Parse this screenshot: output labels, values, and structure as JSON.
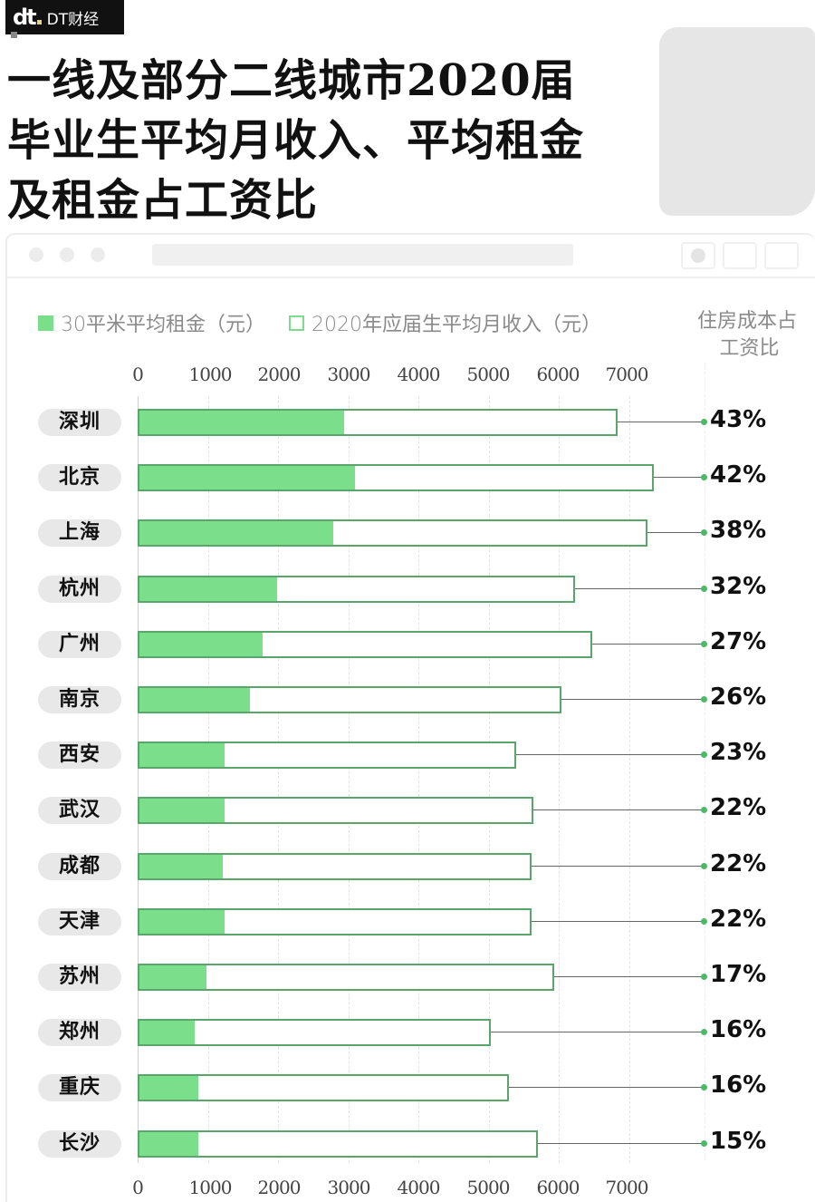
{
  "brand": {
    "logo_mark": "dt",
    "name": "DT财经"
  },
  "title_lines": [
    "一线及部分二线城市2020届",
    "毕业生平均月收入、平均租金",
    "及租金占工资比"
  ],
  "colors": {
    "rent_fill": "#7ade8a",
    "income_border": "#5aa66a",
    "pill_bg": "#e8e8e8",
    "accent_dot": "#4cb868"
  },
  "legend": {
    "rent": "30平米平均租金（元）",
    "income": "2020年应届生平均月收入（元）",
    "ratio_line1": "住房成本占",
    "ratio_line2": "工资比"
  },
  "axis": {
    "ticks": [
      "0",
      "1000",
      "2000",
      "3000",
      "4000",
      "5000",
      "6000",
      "7000"
    ]
  },
  "chart_data": {
    "type": "bar",
    "orientation": "horizontal",
    "title": "一线及部分二线城市2020届毕业生平均月收入、平均租金及租金占工资比",
    "xlabel": "",
    "ylabel": "",
    "xlim": [
      0,
      7000
    ],
    "x_ticks": [
      0,
      1000,
      2000,
      3000,
      4000,
      5000,
      6000,
      7000
    ],
    "grid": true,
    "legend_position": "top",
    "categories": [
      "深圳",
      "北京",
      "上海",
      "杭州",
      "广州",
      "南京",
      "西安",
      "武汉",
      "成都",
      "天津",
      "苏州",
      "郑州",
      "重庆",
      "长沙"
    ],
    "series": [
      {
        "name": "30平米平均租金（元）",
        "style": "filled",
        "values": [
          2940,
          3100,
          2790,
          1990,
          1780,
          1600,
          1240,
          1240,
          1210,
          1240,
          980,
          810,
          860,
          860
        ]
      },
      {
        "name": "2020年应届生平均月收入（元）",
        "style": "outlined",
        "values": [
          6840,
          7350,
          7270,
          6230,
          6480,
          6040,
          5390,
          5640,
          5610,
          5610,
          5930,
          5030,
          5290,
          5700
        ]
      },
      {
        "name": "住房成本占工资比",
        "style": "label",
        "values": [
          "43%",
          "42%",
          "38%",
          "32%",
          "27%",
          "26%",
          "23%",
          "22%",
          "22%",
          "22%",
          "17%",
          "16%",
          "16%",
          "15%"
        ]
      }
    ]
  }
}
